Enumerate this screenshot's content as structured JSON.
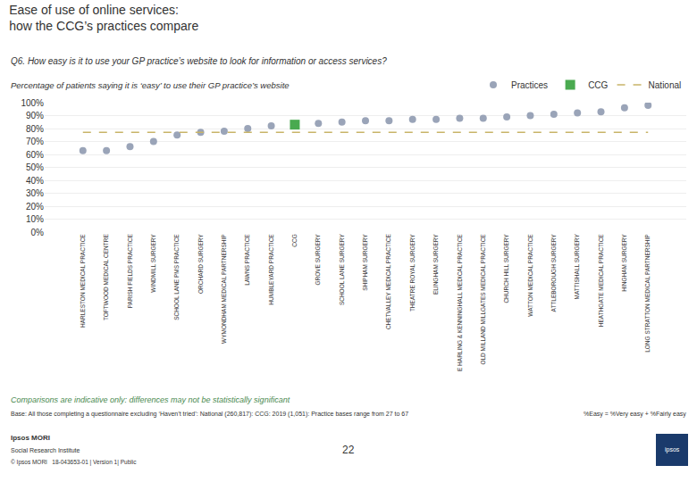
{
  "chart_data": {
    "type": "scatter",
    "title": "Ease of use of online services:\nhow the CCG’s practices compare",
    "subtitle": "Q6. How easy is it to use your GP practice’s website to look for information or access services?",
    "ylabel": "Percentage of patients saying it is ‘easy’ to use their GP practice’s website",
    "categories": [
      "HARLESTON MEDICAL PRACTICE",
      "TOFTWOOD MEDICAL CENTRE",
      "PARISH FIELDS PRACTICE",
      "WINDMILL SURGERY",
      "SCHOOL LANE PMS PRACTICE",
      "ORCHARD SURGERY",
      "WYMONDHAM MEDICAL PARTNERSHIP",
      "LAWNS PRACTICE",
      "HUMBLEYARD PRACTICE",
      "CCG",
      "GROVE SURGERY",
      "SCHOOL LANE SURGERY",
      "SHIPHAM SURGERY",
      "CHETVALLEY MEDICAL PRACTICE",
      "THEATRE ROYAL SURGERY",
      "ELINGHAM SURGERY",
      "E HARLING & KENNINGHALL MEDICAL PRACTICE",
      "OLD MILLAND MILLGATES MEDICAL PRACTICE",
      "CHURCH HILL SURGERY",
      "WATTON MEDICAL PRACTICE",
      "ATTLEBOROUGH SURGERY",
      "MATTISHALL SURGERY",
      "HEATHGATE MEDICAL PRACTICE",
      "HINGHAM SURGERY",
      "LONG STRATTON MEDICAL PARTNERSHIP"
    ],
    "series": [
      {
        "name": "Practices",
        "color": "#9aa4b8",
        "marker": "circle",
        "values": [
          63,
          63,
          66,
          70,
          75,
          77,
          78,
          80,
          82,
          null,
          84,
          85,
          86,
          86,
          87,
          87,
          88,
          88,
          89,
          90,
          91,
          92,
          93,
          96,
          98
        ]
      },
      {
        "name": "CCG",
        "color": "#4aaa50",
        "marker": "square",
        "values": [
          null,
          null,
          null,
          null,
          null,
          null,
          null,
          null,
          null,
          83,
          null,
          null,
          null,
          null,
          null,
          null,
          null,
          null,
          null,
          null,
          null,
          null,
          null,
          null,
          null
        ]
      },
      {
        "name": "National",
        "type": "line",
        "color": "#c8b468",
        "line_style": "dashed",
        "values": [
          77,
          77,
          77,
          77,
          77,
          77,
          77,
          77,
          77,
          77,
          77,
          77,
          77,
          77,
          77,
          77,
          77,
          77,
          77,
          77,
          77,
          77,
          77,
          77,
          77
        ]
      }
    ],
    "ylim": [
      0,
      100
    ],
    "yticks": [
      {
        "value": 0,
        "label": "0%"
      },
      {
        "value": 10,
        "label": "10%"
      },
      {
        "value": 20,
        "label": "20%"
      },
      {
        "value": 30,
        "label": "30%"
      },
      {
        "value": 40,
        "label": "40%"
      },
      {
        "value": 50,
        "label": "50%"
      },
      {
        "value": 60,
        "label": "60%"
      },
      {
        "value": 70,
        "label": "70%"
      },
      {
        "value": 80,
        "label": "80%"
      },
      {
        "value": 90,
        "label": "90%"
      },
      {
        "value": 100,
        "label": "100%"
      }
    ],
    "grid": true,
    "legend": "top right",
    "annotations": [
      "Comparisons are indicative only: differences may not be statistically significant",
      "Base: All those completing a questionnaire excluding ‘Haven’t tried’: National (260,817): CCG: 2019 (1,051): Practice bases range from 27 to 67",
      "%Easy = %Very easy + %Fairly easy",
      "Ipsos MORI",
      "Social Research Institute",
      "© Ipsos MORI   18-043653-01 | Version 1| Public",
      "22",
      "ipsos"
    ]
  }
}
